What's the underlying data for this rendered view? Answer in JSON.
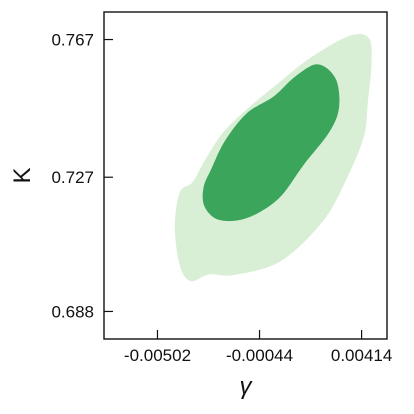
{
  "chart_data": {
    "type": "contour",
    "xlabel": "γ",
    "ylabel": "K",
    "xticks": [
      {
        "value": -0.00502,
        "label": "-0.00502"
      },
      {
        "value": -0.00044,
        "label": "-0.00044"
      },
      {
        "value": 0.00414,
        "label": "0.00414"
      }
    ],
    "yticks": [
      {
        "value": 0.767,
        "label": "0.767"
      },
      {
        "value": 0.727,
        "label": "0.727"
      },
      {
        "value": 0.688,
        "label": "0.688"
      }
    ],
    "xlim": [
      -0.00742,
      0.00528
    ],
    "ylim": [
      0.68,
      0.775
    ],
    "grid": false,
    "contours": [
      {
        "level": "outer",
        "color": "#d9efd5",
        "points": [
          [
            -0.00402,
            0.7226
          ],
          [
            -0.00344,
            0.7256
          ],
          [
            -0.00287,
            0.7322
          ],
          [
            -0.00205,
            0.7402
          ],
          [
            -0.0009,
            0.7474
          ],
          [
            0.0004,
            0.7543
          ],
          [
            0.00182,
            0.7616
          ],
          [
            0.00357,
            0.768
          ],
          [
            0.00447,
            0.7674
          ],
          [
            0.00458,
            0.7596
          ],
          [
            0.00442,
            0.7488
          ],
          [
            0.00425,
            0.739
          ],
          [
            0.00351,
            0.7271
          ],
          [
            0.00241,
            0.7143
          ],
          [
            0.00048,
            0.7025
          ],
          [
            -0.0016,
            0.6986
          ],
          [
            -0.00269,
            0.6988
          ],
          [
            -0.00353,
            0.6968
          ],
          [
            -0.00402,
            0.7014
          ],
          [
            -0.00424,
            0.7126
          ]
        ]
      },
      {
        "level": "inner",
        "color": "#3ba55c",
        "points": [
          [
            -0.00295,
            0.7241
          ],
          [
            -0.00259,
            0.7296
          ],
          [
            -0.00199,
            0.7376
          ],
          [
            -0.00101,
            0.7456
          ],
          [
            0.0002,
            0.7505
          ],
          [
            0.00117,
            0.7563
          ],
          [
            0.00217,
            0.7598
          ],
          [
            0.00297,
            0.7557
          ],
          [
            0.00313,
            0.7474
          ],
          [
            0.0027,
            0.7402
          ],
          [
            0.00154,
            0.7306
          ],
          [
            0.0004,
            0.7207
          ],
          [
            -0.00102,
            0.7151
          ],
          [
            -0.00226,
            0.7146
          ],
          [
            -0.00291,
            0.7185
          ]
        ]
      }
    ]
  }
}
